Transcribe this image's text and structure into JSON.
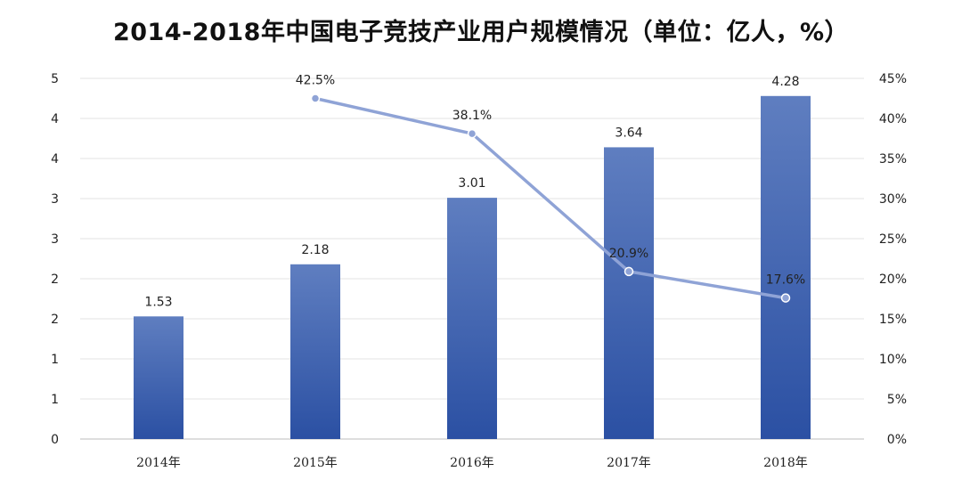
{
  "chart_data": {
    "title": "2014-2018年中国电子竞技产业用户规模情况（单位：亿人，%）",
    "type": "bar",
    "categories": [
      "2014年",
      "2015年",
      "2016年",
      "2017年",
      "2018年"
    ],
    "series": [
      {
        "type": "bar",
        "axis": "left",
        "values": [
          1.53,
          2.18,
          3.01,
          3.64,
          4.28
        ],
        "labels": [
          "1.53",
          "2.18",
          "3.01",
          "3.64",
          "4.28"
        ],
        "color": "#3a5ca8"
      },
      {
        "type": "line",
        "axis": "right",
        "values": [
          null,
          42.5,
          38.1,
          20.9,
          17.6
        ],
        "labels": [
          "",
          "42.5%",
          "38.1%",
          "20.9%",
          "17.6%"
        ],
        "color": "#8fa3d6"
      }
    ],
    "left_axis": {
      "tick_values": [
        0,
        0.5,
        1,
        1.5,
        2,
        2.5,
        3,
        3.5,
        4,
        4.5
      ],
      "tick_labels": [
        "0",
        "1",
        "1",
        "2",
        "2",
        "3",
        "3",
        "4",
        "4",
        "5"
      ],
      "range": [
        0,
        4.5
      ]
    },
    "right_axis": {
      "tick_values": [
        0,
        5,
        10,
        15,
        20,
        25,
        30,
        35,
        40,
        45
      ],
      "tick_labels": [
        "0%",
        "5%",
        "10%",
        "15%",
        "20%",
        "25%",
        "30%",
        "35%",
        "40%",
        "45%"
      ],
      "range": [
        0,
        45
      ]
    },
    "grid": true,
    "legend": "none"
  }
}
